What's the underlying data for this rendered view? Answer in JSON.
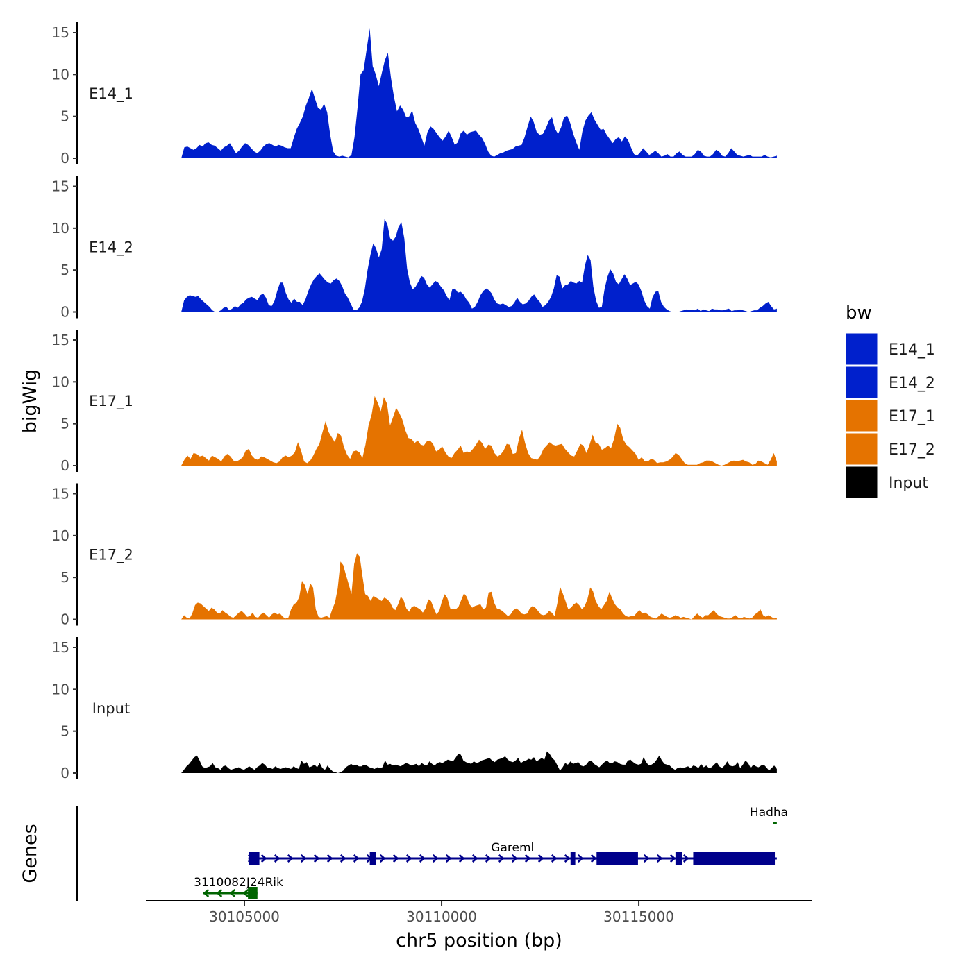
{
  "chart_data": {
    "type": "area",
    "title": "",
    "xlabel": "chr5 position (bp)",
    "ylabel": "bigWig",
    "genes_label": "Genes",
    "ylim": [
      0,
      16
    ],
    "yticks": [
      0,
      5,
      10,
      15
    ],
    "xlim": [
      30102500,
      30119400
    ],
    "xticks": [
      30105000,
      30110000,
      30115000
    ],
    "xtick_labels": [
      "30105000",
      "30110000",
      "30115000"
    ],
    "region": [
      30103400,
      30118500
    ],
    "legend": {
      "title": "bw",
      "position": "right",
      "entries": [
        {
          "label": "E14_1",
          "color": "#0020CC"
        },
        {
          "label": "E14_2",
          "color": "#0020CC"
        },
        {
          "label": "E17_1",
          "color": "#E57300"
        },
        {
          "label": "E17_2",
          "color": "#E57300"
        },
        {
          "label": "Input",
          "color": "#000000"
        }
      ]
    },
    "series": [
      {
        "name": "E14_1",
        "color": "#0020CC",
        "values": [
          0,
          1.3,
          1.4,
          1.2,
          1,
          1.2,
          1.6,
          1.4,
          1.8,
          1.9,
          1.6,
          1.5,
          1.2,
          0.9,
          1.3,
          1.5,
          1.8,
          1.2,
          0.6,
          0.9,
          1.4,
          1.8,
          1.6,
          1.2,
          0.8,
          0.6,
          0.9,
          1.4,
          1.7,
          1.8,
          1.6,
          1.4,
          1.6,
          1.5,
          1.3,
          1.2,
          1.2,
          2.4,
          3.5,
          4.2,
          5,
          6.3,
          7.2,
          8.3,
          7.1,
          6,
          5.8,
          6.5,
          5.5,
          2.8,
          0.8,
          0.3,
          0.2,
          0.3,
          0.2,
          0.1,
          0.4,
          2.5,
          6,
          10,
          10.5,
          13,
          15.5,
          11,
          10,
          8.6,
          10.2,
          11.7,
          12.6,
          9.6,
          7.3,
          5.6,
          6.3,
          5.8,
          4.9,
          5,
          5.7,
          4.2,
          3.5,
          2.5,
          1.5,
          3.1,
          3.8,
          3.5,
          3,
          2.5,
          2.1,
          2.6,
          3.3,
          2.5,
          1.6,
          1.9,
          3,
          3.3,
          2.8,
          3.1,
          3.2,
          3.3,
          2.8,
          2.4,
          1.7,
          0.8,
          0.3,
          0.2,
          0.4,
          0.6,
          0.7,
          0.9,
          1,
          1.1,
          1.4,
          1.5,
          1.6,
          2.5,
          3.8,
          5,
          4.3,
          3.1,
          2.8,
          2.9,
          3.6,
          4.5,
          4.9,
          3.5,
          2.9,
          3.7,
          4.9,
          5.1,
          4.2,
          2.9,
          1.9,
          1,
          3.2,
          4.5,
          5.1,
          5.5,
          4.6,
          4,
          3.4,
          3.5,
          2.8,
          2.3,
          1.8,
          2.3,
          2.5,
          2,
          2.6,
          2.2,
          1.3,
          0.5,
          0.3,
          0.7,
          1.2,
          0.8,
          0.4,
          0.6,
          0.9,
          0.6,
          0.2,
          0.3,
          0.5,
          0.2,
          0.2,
          0.6,
          0.8,
          0.4,
          0.2,
          0.2,
          0.2,
          0.5,
          1,
          0.8,
          0.3,
          0.2,
          0.2,
          0.5,
          1,
          0.8,
          0.3,
          0.2,
          0.6,
          1.2,
          0.8,
          0.4,
          0.3,
          0.2,
          0.3,
          0.4,
          0.2,
          0.2,
          0.2,
          0.2,
          0.4,
          0.2,
          0.1,
          0.2,
          0.3
        ]
      },
      {
        "name": "E14_2",
        "color": "#0020CC",
        "values": [
          0,
          1.4,
          1.8,
          2,
          1.9,
          1.8,
          1.9,
          1.5,
          1.2,
          0.9,
          0.6,
          0.2,
          0,
          0,
          0.2,
          0.5,
          0.6,
          0.2,
          0.4,
          0.7,
          0.5,
          0.9,
          1.1,
          1.5,
          1.7,
          1.8,
          1.6,
          1.4,
          2,
          2.2,
          1.7,
          0.8,
          0.7,
          1.3,
          2.5,
          3.5,
          3.5,
          2.3,
          1.5,
          1.1,
          1.6,
          1.2,
          1.2,
          0.8,
          1.5,
          2.5,
          3.3,
          3.9,
          4.3,
          4.6,
          4.2,
          3.8,
          3.5,
          3.4,
          3.8,
          4,
          3.7,
          3.1,
          2.2,
          1.7,
          1,
          0.3,
          0.2,
          0.5,
          1.2,
          2.7,
          5,
          6.8,
          8.2,
          7.6,
          6.5,
          7.5,
          11.1,
          10.5,
          8.8,
          8.5,
          9,
          10.2,
          10.7,
          8.8,
          5.2,
          3.5,
          2.7,
          3,
          3.6,
          4.3,
          4.1,
          3.3,
          2.9,
          3.3,
          3.7,
          3.5,
          3,
          2.6,
          1.9,
          1.4,
          2.7,
          2.8,
          2.3,
          2.4,
          2.1,
          1.5,
          1.1,
          0.4,
          0.6,
          1.2,
          2,
          2.5,
          2.8,
          2.6,
          2.2,
          1.4,
          1,
          0.9,
          1,
          0.8,
          0.6,
          0.7,
          1.1,
          1.7,
          1.2,
          0.9,
          1,
          1.3,
          1.8,
          2.1,
          1.6,
          1.2,
          0.6,
          0.8,
          1.2,
          1.8,
          2.8,
          4.4,
          4.2,
          2.8,
          3.2,
          3.3,
          3.7,
          3.5,
          3.4,
          3.7,
          3.5,
          5.5,
          6.8,
          6.2,
          3,
          1.3,
          0.5,
          0.6,
          2.8,
          4.2,
          5.1,
          4.6,
          3.6,
          3.3,
          3.9,
          4.5,
          4,
          3.2,
          3.4,
          3.6,
          3.3,
          2.5,
          1.4,
          0.7,
          0.4,
          1.8,
          2.4,
          2.5,
          1.2,
          0.6,
          0.3,
          0.1,
          0,
          0,
          0,
          0.1,
          0.2,
          0.3,
          0.2,
          0.3,
          0.2,
          0.4,
          0.1,
          0.3,
          0.2,
          0.1,
          0.4,
          0.3,
          0.3,
          0.2,
          0.2,
          0.3,
          0.4,
          0.1,
          0.2,
          0.2,
          0.3,
          0.2,
          0.1,
          0,
          0.1,
          0.2,
          0.2,
          0.5,
          0.7,
          1,
          1.2,
          0.7,
          0.3,
          0.4
        ]
      },
      {
        "name": "E17_1",
        "color": "#E57300",
        "values": [
          0,
          0.7,
          1.2,
          0.8,
          1.5,
          1.4,
          1.1,
          1.2,
          0.9,
          0.6,
          1.2,
          1,
          0.8,
          0.5,
          1.1,
          1.4,
          1.1,
          0.6,
          0.5,
          0.7,
          1,
          1.8,
          2,
          1.2,
          0.8,
          0.7,
          1.1,
          1,
          0.8,
          0.6,
          0.4,
          0.3,
          0.5,
          1,
          1.2,
          1,
          1.2,
          1.6,
          2.8,
          1.8,
          0.5,
          0.3,
          0.6,
          1.2,
          2,
          2.6,
          4,
          5.3,
          4,
          3.4,
          2.8,
          3.9,
          3.6,
          2.2,
          1.3,
          0.8,
          1.7,
          1.8,
          1.6,
          0.9,
          2.5,
          4.8,
          6.1,
          8.3,
          7.5,
          6.5,
          8.2,
          7.4,
          4.8,
          5.8,
          6.9,
          6.3,
          5.5,
          4.2,
          3.3,
          3.2,
          2.7,
          3,
          2.5,
          2.4,
          2.9,
          3,
          2.6,
          1.7,
          1.9,
          2.3,
          1.6,
          1.1,
          0.9,
          1.5,
          1.9,
          2.4,
          1.5,
          1.7,
          1.6,
          2,
          2.5,
          3.1,
          2.7,
          2,
          2.5,
          2.4,
          1.5,
          1.1,
          1.3,
          1.8,
          2.6,
          2.5,
          1.4,
          1.5,
          3.2,
          4.3,
          2.7,
          1.5,
          0.9,
          0.8,
          0.7,
          1.2,
          2,
          2.4,
          2.8,
          2.5,
          2.4,
          2.5,
          2.6,
          2,
          1.6,
          1.2,
          1.1,
          1.8,
          2.6,
          2.4,
          1.5,
          2.5,
          3.7,
          2.7,
          2.6,
          1.9,
          2.1,
          2.4,
          2.1,
          3.2,
          5,
          4.5,
          3.1,
          2.5,
          2.2,
          1.8,
          1.4,
          0.7,
          1,
          0.5,
          0.5,
          0.8,
          0.7,
          0.3,
          0.4,
          0.4,
          0.5,
          0.7,
          1,
          1.5,
          1.3,
          0.8,
          0.3,
          0.1,
          0.1,
          0.1,
          0.1,
          0.3,
          0.4,
          0.6,
          0.6,
          0.5,
          0.3,
          0.1,
          0,
          0.1,
          0.3,
          0.5,
          0.6,
          0.5,
          0.6,
          0.7,
          0.5,
          0.4,
          0.1,
          0.2,
          0.6,
          0.5,
          0.3,
          0.1,
          0.7,
          1.5,
          0.5
        ]
      },
      {
        "name": "E17_2",
        "color": "#E57300",
        "values": [
          0,
          0.5,
          0.2,
          0.1,
          0.7,
          1.7,
          2,
          1.9,
          1.6,
          1.3,
          1,
          1.4,
          1.2,
          0.8,
          0.7,
          1.1,
          0.8,
          0.6,
          0.3,
          0.2,
          0.5,
          0.8,
          1,
          0.7,
          0.3,
          0.4,
          0.8,
          0.3,
          0.2,
          0.6,
          0.8,
          0.5,
          0.2,
          0.6,
          0.8,
          0.6,
          0.7,
          0.3,
          0.1,
          0.2,
          1.2,
          1.8,
          2,
          2.7,
          4.6,
          4.1,
          3,
          4.3,
          3.8,
          1.2,
          0.3,
          0.2,
          0.3,
          0.4,
          0.2,
          1.2,
          2,
          3.7,
          6.9,
          6.5,
          5.3,
          4.2,
          3,
          6.6,
          7.9,
          7.5,
          5.2,
          3,
          2.8,
          2.2,
          2.8,
          2.6,
          2.4,
          2.2,
          2.6,
          2.4,
          2.1,
          1.4,
          1.1,
          1.8,
          2.7,
          2.3,
          1.3,
          0.9,
          1.5,
          1.6,
          1.4,
          1.2,
          0.8,
          1.3,
          2.4,
          2.2,
          1.3,
          0.6,
          1,
          2.2,
          3,
          2.5,
          1.3,
          1.2,
          1.2,
          1.5,
          2.3,
          3.1,
          2.7,
          1.8,
          1.4,
          1.6,
          1.7,
          1.8,
          1.2,
          1.4,
          3.2,
          3.3,
          2,
          1.3,
          1.2,
          1,
          0.7,
          0.4,
          0.6,
          1.1,
          1.3,
          1.1,
          0.7,
          0.6,
          0.7,
          1.3,
          1.6,
          1.4,
          1,
          0.6,
          0.5,
          0.6,
          1,
          0.8,
          0.4,
          1.9,
          3.9,
          3.1,
          2.2,
          1.2,
          1.4,
          1.8,
          2,
          1.7,
          1.2,
          1.6,
          2.4,
          3.8,
          3.4,
          2.2,
          1.6,
          1.2,
          1.7,
          2.2,
          3.3,
          2.5,
          1.8,
          1.4,
          1.2,
          0.7,
          0.4,
          0.3,
          0.4,
          0.4,
          0.8,
          1.1,
          0.7,
          0.8,
          0.6,
          0.3,
          0.2,
          0.1,
          0.4,
          0.7,
          0.5,
          0.3,
          0.2,
          0.3,
          0.5,
          0.4,
          0.2,
          0.3,
          0.2,
          0.1,
          0,
          0.4,
          0.7,
          0.4,
          0.2,
          0.5,
          0.5,
          0.8,
          1.1,
          0.7,
          0.4,
          0.3,
          0.2,
          0.1,
          0.1,
          0.3,
          0.5,
          0.2,
          0.1,
          0.3,
          0.2,
          0.1,
          0.2,
          0.6,
          0.8,
          1.2,
          0.5,
          0.3,
          0.5,
          0.3,
          0.1,
          0.2
        ]
      },
      {
        "name": "Input",
        "color": "#000000",
        "values": [
          0,
          0.4,
          0.8,
          1.1,
          1.5,
          1.9,
          2.1,
          1.5,
          0.8,
          0.6,
          0.7,
          0.8,
          1.2,
          0.7,
          0.6,
          0.4,
          0.8,
          0.9,
          0.6,
          0.4,
          0.5,
          0.6,
          0.7,
          0.5,
          0.4,
          0.6,
          0.8,
          0.6,
          0.4,
          0.7,
          0.9,
          1.2,
          1,
          0.6,
          0.6,
          0.5,
          0.8,
          0.6,
          0.5,
          0.6,
          0.7,
          0.6,
          0.5,
          0.8,
          0.6,
          0.5,
          1.5,
          1.1,
          1.3,
          0.7,
          0.8,
          1,
          0.7,
          1.2,
          0.6,
          0.4,
          0.9,
          0.5,
          0.2,
          0.1,
          0,
          0.1,
          0.3,
          0.7,
          0.9,
          1.1,
          0.9,
          1,
          0.8,
          0.8,
          1,
          0.9,
          0.7,
          0.6,
          0.5,
          0.7,
          0.6,
          0.7,
          1.5,
          1,
          1.1,
          0.9,
          1,
          0.9,
          0.8,
          1,
          1.2,
          1.1,
          0.9,
          1,
          1.1,
          0.8,
          1.2,
          1,
          0.9,
          1.4,
          1.1,
          0.9,
          1.2,
          1.3,
          1.2,
          1.4,
          1.6,
          1.5,
          1.4,
          1.8,
          2.3,
          2.2,
          1.5,
          1.3,
          1.2,
          1.1,
          1.4,
          1.2,
          1.3,
          1.5,
          1.6,
          1.7,
          1.8,
          1.5,
          1.3,
          1.6,
          1.7,
          1.8,
          2,
          1.6,
          1.4,
          1.3,
          1.5,
          1.8,
          1.2,
          1.4,
          1.5,
          1.7,
          1.6,
          1.9,
          1.4,
          1.6,
          1.8,
          1.6,
          2.6,
          2.3,
          1.8,
          1.5,
          0.9,
          0.3,
          0.7,
          1.2,
          1,
          1.4,
          1.1,
          1.2,
          1.3,
          0.9,
          0.8,
          1,
          1.4,
          1.5,
          1.1,
          0.9,
          0.7,
          1,
          1.3,
          1.5,
          1.2,
          1.2,
          1.4,
          1.3,
          1.1,
          1,
          1,
          1.5,
          1.6,
          1.3,
          1.1,
          1,
          1.1,
          1.9,
          1.3,
          0.9,
          1,
          1.2,
          1.6,
          2.1,
          1.5,
          1.1,
          1,
          0.9,
          0.6,
          0.4,
          0.6,
          0.7,
          0.6,
          0.7,
          0.8,
          0.6,
          0.9,
          0.8,
          0.6,
          1.1,
          0.7,
          0.9,
          0.6,
          0.7,
          1,
          1.3,
          0.8,
          0.6,
          0.9,
          1.4,
          0.9,
          0.8,
          0.9,
          1.3,
          0.6,
          1,
          1.5,
          1.2,
          0.6,
          1,
          0.8,
          0.7,
          0.9,
          1,
          0.7,
          0.3,
          0.6,
          0.9,
          0.5
        ]
      }
    ],
    "genes": [
      {
        "name": "Hadha",
        "strand": "-",
        "color": "#006400",
        "start": 30118400,
        "end": 30118500,
        "row": 0,
        "exons": [],
        "label_x": 30118300
      },
      {
        "name": "Gareml",
        "strand": "+",
        "color": "#00008B",
        "start": 30105100,
        "end": 30118500,
        "row": 1,
        "label_x": 30111800,
        "exons": [
          [
            30105120,
            30105380
          ],
          [
            30108180,
            30108330
          ],
          [
            30113270,
            30113390
          ],
          [
            30113930,
            30114980
          ],
          [
            30115930,
            30116100
          ],
          [
            30116380,
            30118450
          ]
        ]
      },
      {
        "name": "3110082J24Rik",
        "strand": "-",
        "color": "#006400",
        "start": 30103950,
        "end": 30105330,
        "row": 2,
        "label_x": 30104850,
        "exons": [
          [
            30105090,
            30105330
          ]
        ]
      }
    ]
  }
}
